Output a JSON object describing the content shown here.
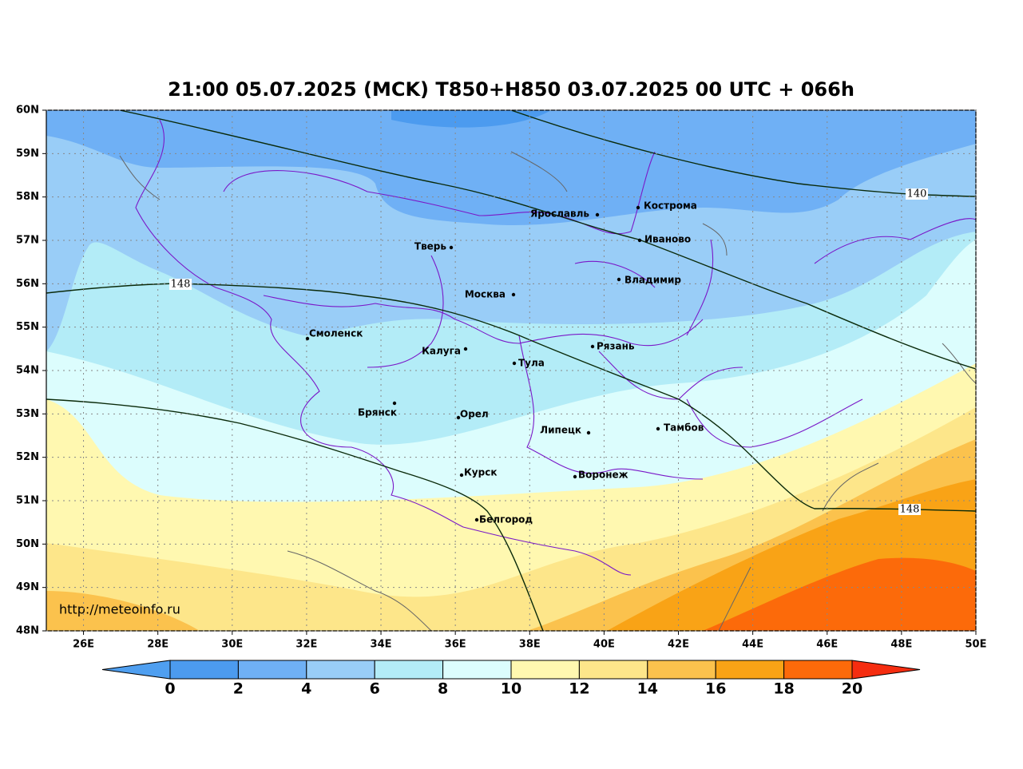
{
  "title": "21:00 05.07.2025 (MCK) T850+H850 03.07.2025 00 UTC + 066h",
  "map": {
    "xlim": [
      25,
      50
    ],
    "ylim": [
      48,
      60
    ],
    "grid": true,
    "xticks": [
      {
        "value": 26,
        "label": "26E"
      },
      {
        "value": 28,
        "label": "28E"
      },
      {
        "value": 30,
        "label": "30E"
      },
      {
        "value": 32,
        "label": "32E"
      },
      {
        "value": 34,
        "label": "34E"
      },
      {
        "value": 36,
        "label": "36E"
      },
      {
        "value": 38,
        "label": "38E"
      },
      {
        "value": 40,
        "label": "40E"
      },
      {
        "value": 42,
        "label": "42E"
      },
      {
        "value": 44,
        "label": "44E"
      },
      {
        "value": 46,
        "label": "46E"
      },
      {
        "value": 48,
        "label": "48E"
      },
      {
        "value": 50,
        "label": "50E"
      }
    ],
    "yticks": [
      {
        "value": 48,
        "label": "48N"
      },
      {
        "value": 49,
        "label": "49N"
      },
      {
        "value": 50,
        "label": "50N"
      },
      {
        "value": 51,
        "label": "51N"
      },
      {
        "value": 52,
        "label": "52N"
      },
      {
        "value": 53,
        "label": "53N"
      },
      {
        "value": 54,
        "label": "54N"
      },
      {
        "value": 55,
        "label": "55N"
      },
      {
        "value": 56,
        "label": "56N"
      },
      {
        "value": 57,
        "label": "57N"
      },
      {
        "value": 58,
        "label": "58N"
      },
      {
        "value": 59,
        "label": "59N"
      },
      {
        "value": 60,
        "label": "60N"
      }
    ]
  },
  "cities": [
    "Кострома",
    "Ярославль",
    "Иваново",
    "Тверь",
    "Владимир",
    "Москва",
    "Смоленск",
    "Калуга",
    "Рязань",
    "Тула",
    "Брянск",
    "Орел",
    "Липецк",
    "Тамбов",
    "Курск",
    "Воронеж",
    "Белгород"
  ],
  "contour_labels": [
    140,
    148,
    148
  ],
  "watermark": "http://meteoinfo.ru",
  "colorbar": {
    "ticks": [
      0,
      2,
      4,
      6,
      8,
      10,
      12,
      14,
      16,
      18,
      20
    ],
    "colors": [
      "#4f9ff0",
      "#4c9bef",
      "#6fb0f5",
      "#99cdf7",
      "#b3ecf7",
      "#dcfdfd",
      "#fff8b0",
      "#fde68a",
      "#fbc24d",
      "#f9a316",
      "#fc6a0a",
      "#f52d10"
    ]
  }
}
